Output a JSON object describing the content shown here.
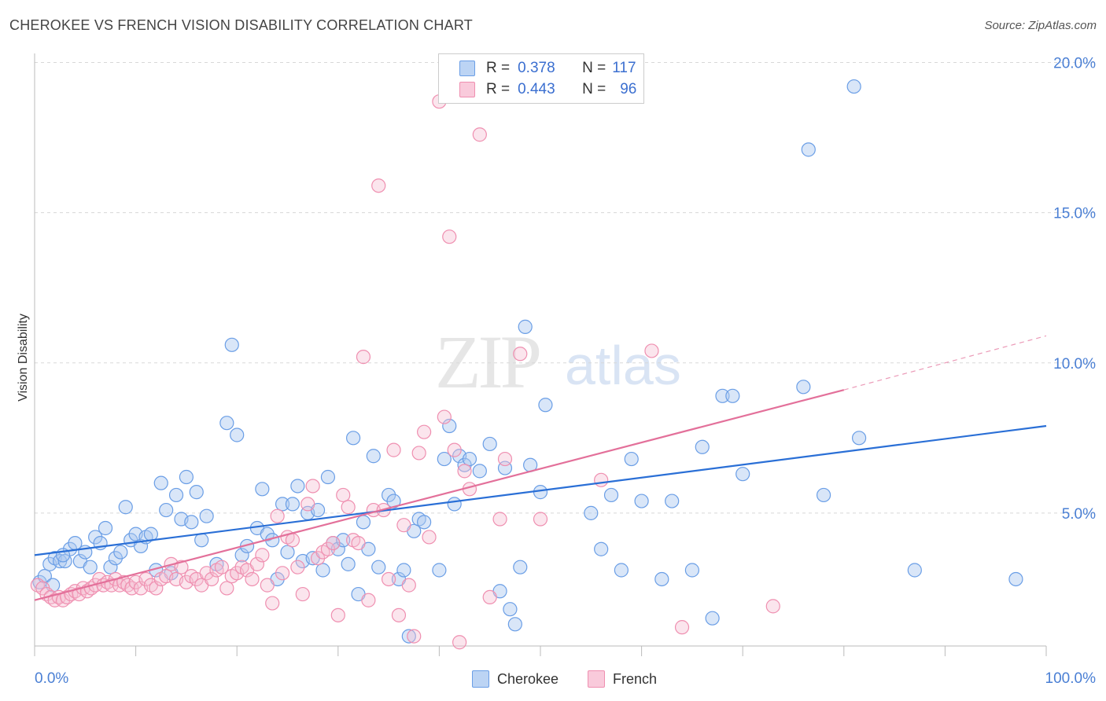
{
  "title": "CHEROKEE VS FRENCH VISION DISABILITY CORRELATION CHART",
  "source": "Source: ZipAtlas.com",
  "watermark": {
    "zip": "ZIP",
    "atlas": "atlas"
  },
  "colors": {
    "cherokee": "#6a9ee6",
    "french": "#ef8fb0",
    "cherokee_line": "#2a6fd6",
    "french_line": "#e3709a",
    "tick_text": "#4a7fd4"
  },
  "legend": {
    "rows": [
      {
        "r_label": "R =",
        "r_value": "0.378",
        "n_label": "N =",
        "n_value": "117"
      },
      {
        "r_label": "R =",
        "r_value": "0.443",
        "n_label": "N =",
        "n_value": "96"
      }
    ]
  },
  "bottom_legend": {
    "cherokee": "Cherokee",
    "french": "French"
  },
  "chart_data": {
    "type": "scatter",
    "title": "CHEROKEE VS FRENCH VISION DISABILITY CORRELATION CHART",
    "xlabel": "",
    "ylabel": "Vision Disability",
    "xlim": [
      0,
      100
    ],
    "ylim": [
      0,
      20.5
    ],
    "x_tick_labels": [
      "0.0%",
      "100.0%"
    ],
    "y_ticks": [
      5,
      10,
      15,
      20
    ],
    "y_tick_labels": [
      "5.0%",
      "10.0%",
      "15.0%",
      "20.0%"
    ],
    "grid": "horizontal dashed",
    "legend_placement": "top-center",
    "series": [
      {
        "name": "Cherokee",
        "trend": {
          "x": [
            0,
            100
          ],
          "y": [
            3.6,
            7.9
          ]
        },
        "points": [
          [
            0.5,
            2.7
          ],
          [
            1,
            2.9
          ],
          [
            1.5,
            3.3
          ],
          [
            2,
            3.5
          ],
          [
            2.5,
            3.4
          ],
          [
            3,
            3.4
          ],
          [
            3.5,
            3.8
          ],
          [
            4,
            4.0
          ],
          [
            4.5,
            3.4
          ],
          [
            5,
            3.7
          ],
          [
            5.5,
            3.2
          ],
          [
            6,
            4.2
          ],
          [
            6.5,
            4.0
          ],
          [
            7,
            4.5
          ],
          [
            7.5,
            3.2
          ],
          [
            8,
            3.5
          ],
          [
            8.5,
            3.7
          ],
          [
            9,
            5.2
          ],
          [
            9.5,
            4.1
          ],
          [
            10,
            4.3
          ],
          [
            10.5,
            3.9
          ],
          [
            11,
            4.2
          ],
          [
            11.5,
            4.3
          ],
          [
            12,
            3.1
          ],
          [
            12.5,
            6.0
          ],
          [
            13,
            5.1
          ],
          [
            13.5,
            3.0
          ],
          [
            14,
            5.6
          ],
          [
            14.5,
            4.8
          ],
          [
            15,
            6.2
          ],
          [
            15.5,
            4.7
          ],
          [
            16,
            5.7
          ],
          [
            16.5,
            4.1
          ],
          [
            17,
            4.9
          ],
          [
            18,
            3.3
          ],
          [
            19,
            8.0
          ],
          [
            19.5,
            10.6
          ],
          [
            20,
            7.6
          ],
          [
            20.5,
            3.6
          ],
          [
            21,
            3.9
          ],
          [
            22,
            4.5
          ],
          [
            22.5,
            5.8
          ],
          [
            23,
            4.3
          ],
          [
            23.5,
            4.1
          ],
          [
            24,
            2.8
          ],
          [
            24.5,
            5.3
          ],
          [
            25,
            3.7
          ],
          [
            25.5,
            5.3
          ],
          [
            26,
            5.9
          ],
          [
            26.5,
            3.4
          ],
          [
            27,
            5.0
          ],
          [
            27.5,
            3.5
          ],
          [
            28,
            5.1
          ],
          [
            28.5,
            3.1
          ],
          [
            29,
            6.2
          ],
          [
            29.5,
            4.0
          ],
          [
            30,
            3.8
          ],
          [
            30.5,
            4.1
          ],
          [
            31,
            3.3
          ],
          [
            32,
            2.3
          ],
          [
            32.5,
            4.7
          ],
          [
            31.5,
            7.5
          ],
          [
            33,
            3.8
          ],
          [
            33.5,
            6.9
          ],
          [
            34,
            3.2
          ],
          [
            35,
            5.6
          ],
          [
            35.5,
            5.4
          ],
          [
            36,
            2.8
          ],
          [
            36.5,
            3.1
          ],
          [
            37,
            0.9
          ],
          [
            37.5,
            4.4
          ],
          [
            38,
            4.8
          ],
          [
            38.5,
            4.7
          ],
          [
            40,
            3.1
          ],
          [
            40.5,
            6.8
          ],
          [
            41,
            7.9
          ],
          [
            41.5,
            5.3
          ],
          [
            42,
            6.9
          ],
          [
            42.5,
            6.6
          ],
          [
            43,
            6.8
          ],
          [
            44,
            6.4
          ],
          [
            45,
            7.3
          ],
          [
            46,
            2.4
          ],
          [
            46.5,
            6.5
          ],
          [
            47,
            1.8
          ],
          [
            47.5,
            1.3
          ],
          [
            48,
            3.2
          ],
          [
            48.5,
            11.2
          ],
          [
            49,
            6.6
          ],
          [
            50,
            5.7
          ],
          [
            50.5,
            8.6
          ],
          [
            55,
            5.0
          ],
          [
            56,
            3.8
          ],
          [
            57,
            5.6
          ],
          [
            58,
            3.1
          ],
          [
            59,
            6.8
          ],
          [
            60,
            5.4
          ],
          [
            62,
            2.8
          ],
          [
            63,
            5.4
          ],
          [
            65,
            3.1
          ],
          [
            66,
            7.2
          ],
          [
            67,
            1.5
          ],
          [
            68,
            8.9
          ],
          [
            69,
            8.9
          ],
          [
            70,
            6.3
          ],
          [
            76,
            9.2
          ],
          [
            76.5,
            17.1
          ],
          [
            78,
            5.6
          ],
          [
            81,
            19.2
          ],
          [
            81.5,
            7.5
          ],
          [
            87,
            3.1
          ],
          [
            97,
            2.8
          ],
          [
            1.8,
            2.6
          ],
          [
            2.8,
            3.6
          ]
        ]
      },
      {
        "name": "French",
        "trend": {
          "x": [
            0,
            80
          ],
          "y": [
            2.1,
            9.1
          ]
        },
        "trend_extension": {
          "x": [
            80,
            100
          ],
          "y": [
            9.1,
            10.9
          ]
        },
        "points": [
          [
            0.3,
            2.6
          ],
          [
            0.8,
            2.5
          ],
          [
            1.2,
            2.3
          ],
          [
            1.6,
            2.2
          ],
          [
            2,
            2.1
          ],
          [
            2.4,
            2.2
          ],
          [
            2.8,
            2.1
          ],
          [
            3.2,
            2.2
          ],
          [
            3.6,
            2.3
          ],
          [
            4,
            2.4
          ],
          [
            4.4,
            2.3
          ],
          [
            4.8,
            2.5
          ],
          [
            5.2,
            2.4
          ],
          [
            5.6,
            2.5
          ],
          [
            6,
            2.6
          ],
          [
            6.4,
            2.8
          ],
          [
            6.8,
            2.6
          ],
          [
            7.2,
            2.7
          ],
          [
            7.6,
            2.6
          ],
          [
            8,
            2.8
          ],
          [
            8.4,
            2.6
          ],
          [
            8.8,
            2.7
          ],
          [
            9.2,
            2.6
          ],
          [
            9.6,
            2.5
          ],
          [
            10,
            2.7
          ],
          [
            10.5,
            2.5
          ],
          [
            11,
            2.8
          ],
          [
            11.5,
            2.6
          ],
          [
            12,
            2.5
          ],
          [
            12.5,
            2.8
          ],
          [
            13,
            2.9
          ],
          [
            13.5,
            3.3
          ],
          [
            14,
            2.8
          ],
          [
            14.5,
            3.2
          ],
          [
            15,
            2.7
          ],
          [
            15.5,
            2.9
          ],
          [
            16,
            2.8
          ],
          [
            16.5,
            2.6
          ],
          [
            17,
            3.0
          ],
          [
            17.5,
            2.8
          ],
          [
            18,
            3.1
          ],
          [
            18.5,
            3.2
          ],
          [
            19,
            2.5
          ],
          [
            19.5,
            2.9
          ],
          [
            20,
            3.0
          ],
          [
            20.5,
            3.2
          ],
          [
            21,
            3.1
          ],
          [
            21.5,
            2.8
          ],
          [
            22,
            3.3
          ],
          [
            22.5,
            3.6
          ],
          [
            23,
            2.6
          ],
          [
            23.5,
            2.0
          ],
          [
            24,
            4.9
          ],
          [
            24.5,
            3.0
          ],
          [
            25,
            4.2
          ],
          [
            25.5,
            4.1
          ],
          [
            26,
            3.2
          ],
          [
            26.5,
            2.3
          ],
          [
            27,
            5.3
          ],
          [
            27.5,
            5.9
          ],
          [
            28,
            3.5
          ],
          [
            28.5,
            3.7
          ],
          [
            29,
            3.8
          ],
          [
            29.5,
            4.0
          ],
          [
            30,
            1.6
          ],
          [
            30.5,
            5.6
          ],
          [
            31,
            5.2
          ],
          [
            31.5,
            4.1
          ],
          [
            32,
            4.0
          ],
          [
            32.5,
            10.2
          ],
          [
            33,
            2.1
          ],
          [
            33.5,
            5.1
          ],
          [
            34,
            15.9
          ],
          [
            34.5,
            5.1
          ],
          [
            35,
            2.8
          ],
          [
            35.5,
            7.1
          ],
          [
            36,
            1.6
          ],
          [
            36.5,
            4.6
          ],
          [
            37,
            2.6
          ],
          [
            37.5,
            0.9
          ],
          [
            38,
            7.0
          ],
          [
            38.5,
            7.7
          ],
          [
            39,
            4.2
          ],
          [
            40,
            18.7
          ],
          [
            40.5,
            8.2
          ],
          [
            41,
            14.2
          ],
          [
            41.5,
            7.1
          ],
          [
            42,
            0.7
          ],
          [
            42.5,
            6.4
          ],
          [
            43,
            5.8
          ],
          [
            44,
            17.6
          ],
          [
            45,
            2.2
          ],
          [
            46,
            4.8
          ],
          [
            46.5,
            6.8
          ],
          [
            48,
            10.3
          ],
          [
            50,
            4.8
          ],
          [
            56,
            6.1
          ],
          [
            61,
            10.4
          ],
          [
            64,
            1.2
          ],
          [
            73,
            1.9
          ]
        ]
      }
    ]
  }
}
